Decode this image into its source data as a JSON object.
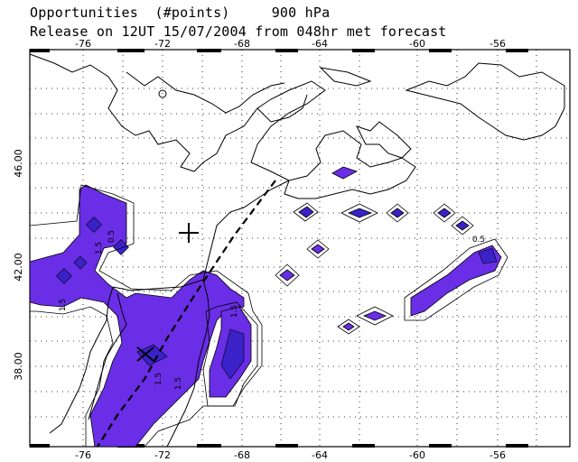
{
  "title": {
    "line1": "Opportunities  (#points)     900 hPa",
    "line2": "Release on 12UT 15/07/2004 from 048hr met forecast"
  },
  "axes": {
    "x_ticks": [
      "-76",
      "-72",
      "-68",
      "-64",
      "-60",
      "-56"
    ],
    "y_ticks": [
      "46.00",
      "42.00",
      "38.00"
    ]
  },
  "contour_labels": [
    "0.5",
    "1.5",
    "1.5",
    "1.5",
    "1.5",
    "1.5",
    "0.5"
  ],
  "colors": {
    "fill_light": "#6a2ee6",
    "fill_dark": "#3a22c8",
    "coast": "#000000",
    "grid": "#000000"
  }
}
